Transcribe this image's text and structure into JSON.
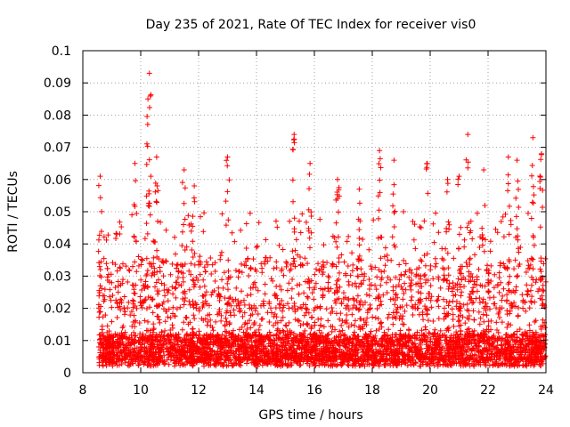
{
  "chart_data": {
    "type": "scatter",
    "title": "Day 235 of 2021, Rate Of TEC Index for receiver vis0",
    "xlabel": "GPS time / hours",
    "ylabel": "ROTI / TECUs",
    "xlim": [
      8,
      24
    ],
    "ylim": [
      0,
      0.1
    ],
    "x_ticks": [
      "8",
      "10",
      "12",
      "14",
      "16",
      "18",
      "20",
      "22",
      "24"
    ],
    "y_ticks": [
      "0",
      "0.01",
      "0.02",
      "0.03",
      "0.04",
      "0.05",
      "0.06",
      "0.07",
      "0.08",
      "0.09",
      "0.1"
    ],
    "grid": true,
    "marker": "+",
    "marker_color": "#ff0000",
    "data_start_hour": 8.55,
    "data_end_hour": 24,
    "baseline_range": [
      0.002,
      0.012
    ],
    "notable_peaks": [
      {
        "x": 8.6,
        "y": 0.061
      },
      {
        "x": 9.8,
        "y": 0.065
      },
      {
        "x": 10.3,
        "y": 0.093
      },
      {
        "x": 10.25,
        "y": 0.085
      },
      {
        "x": 10.55,
        "y": 0.067
      },
      {
        "x": 11.5,
        "y": 0.063
      },
      {
        "x": 11.85,
        "y": 0.058
      },
      {
        "x": 13.0,
        "y": 0.067
      },
      {
        "x": 15.3,
        "y": 0.074
      },
      {
        "x": 15.85,
        "y": 0.065
      },
      {
        "x": 16.8,
        "y": 0.06
      },
      {
        "x": 17.55,
        "y": 0.057
      },
      {
        "x": 18.25,
        "y": 0.069
      },
      {
        "x": 18.75,
        "y": 0.066
      },
      {
        "x": 19.9,
        "y": 0.065
      },
      {
        "x": 20.6,
        "y": 0.06
      },
      {
        "x": 21.0,
        "y": 0.061
      },
      {
        "x": 21.3,
        "y": 0.074
      },
      {
        "x": 21.85,
        "y": 0.063
      },
      {
        "x": 22.7,
        "y": 0.067
      },
      {
        "x": 23.0,
        "y": 0.066
      },
      {
        "x": 23.55,
        "y": 0.073
      },
      {
        "x": 23.85,
        "y": 0.068
      }
    ]
  }
}
